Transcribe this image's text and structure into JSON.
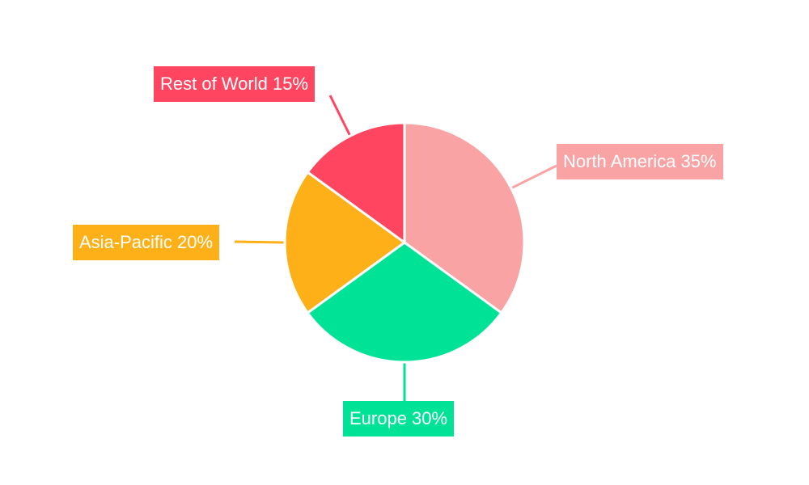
{
  "chart_data": {
    "type": "pie",
    "start_angle": "top",
    "direction": "clockwise",
    "slices": [
      {
        "label": "North America",
        "value": 35,
        "text": "North America 35%",
        "color": "#f9a3a4"
      },
      {
        "label": "Europe",
        "value": 30,
        "text": "Europe 30%",
        "color": "#00e396"
      },
      {
        "label": "Asia-Pacific",
        "value": 20,
        "text": "Asia-Pacific 20%",
        "color": "#feb019"
      },
      {
        "label": "Rest of World",
        "value": 15,
        "text": "Rest of World 15%",
        "color": "#ff4560"
      }
    ]
  }
}
